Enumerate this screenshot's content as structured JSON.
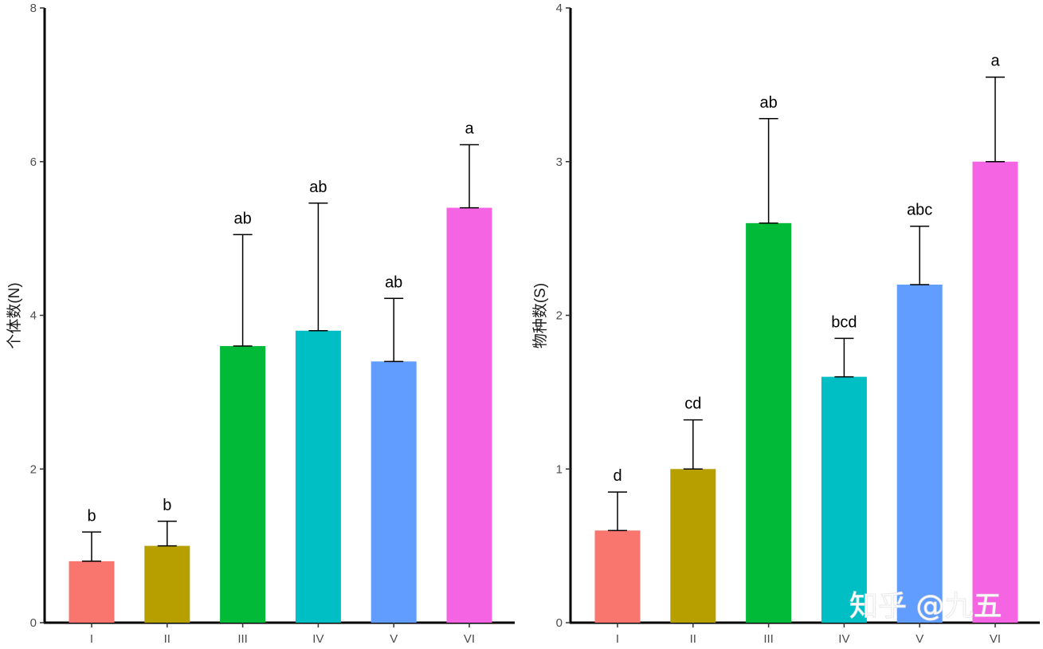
{
  "chart_data": [
    {
      "type": "bar",
      "categories": [
        "I",
        "II",
        "III",
        "IV",
        "V",
        "VI"
      ],
      "values": [
        0.8,
        1.0,
        3.6,
        3.8,
        3.4,
        5.4
      ],
      "error_upper": [
        1.18,
        1.32,
        5.05,
        5.46,
        4.22,
        6.22
      ],
      "significance": [
        "b",
        "b",
        "ab",
        "ab",
        "ab",
        "a"
      ],
      "colors": [
        "#F8766D",
        "#B79F00",
        "#00BA38",
        "#00BFC4",
        "#619CFF",
        "#F564E3"
      ],
      "xlabel": "",
      "ylabel": "个体数(N)",
      "ylim": [
        0,
        8
      ],
      "yticks": [
        0,
        2,
        4,
        6,
        8
      ],
      "grid": false,
      "legend": "none"
    },
    {
      "type": "bar",
      "categories": [
        "I",
        "II",
        "III",
        "IV",
        "V",
        "VI"
      ],
      "values": [
        0.6,
        1.0,
        2.6,
        1.6,
        2.2,
        3.0
      ],
      "error_upper": [
        0.85,
        1.32,
        3.28,
        1.85,
        2.58,
        3.55
      ],
      "significance": [
        "d",
        "cd",
        "ab",
        "bcd",
        "abc",
        "a"
      ],
      "colors": [
        "#F8766D",
        "#B79F00",
        "#00BA38",
        "#00BFC4",
        "#619CFF",
        "#F564E3"
      ],
      "xlabel": "",
      "ylabel": "物种数(S)",
      "ylim": [
        0,
        4
      ],
      "yticks": [
        0,
        1,
        2,
        3,
        4
      ],
      "grid": false,
      "legend": "none"
    }
  ],
  "watermark": "知乎 @九五"
}
